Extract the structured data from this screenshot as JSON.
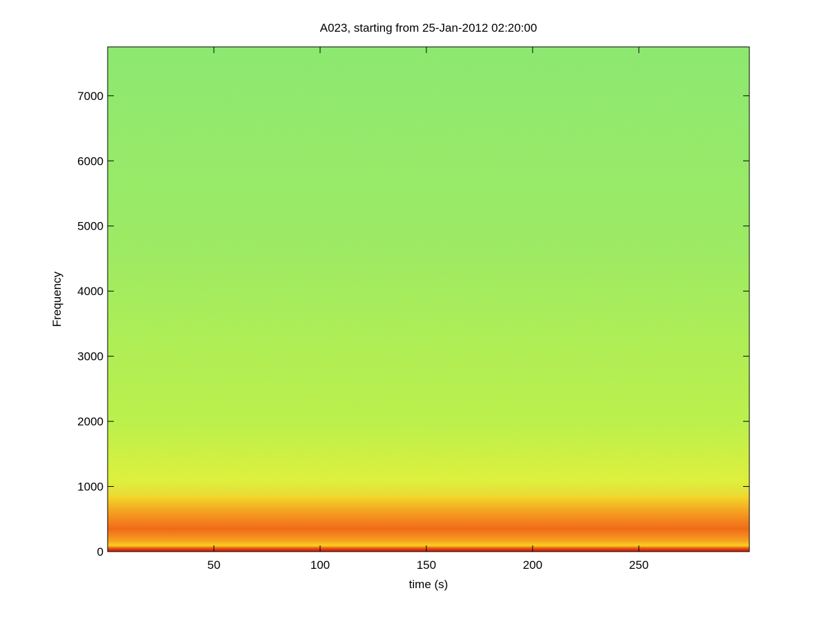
{
  "chart_data": {
    "type": "spectrogram",
    "title": "A023, starting from 25-Jan-2012 02:20:00",
    "xlabel": "time (s)",
    "ylabel": "Frequency",
    "xlim": [
      0,
      302
    ],
    "ylim": [
      0,
      7750
    ],
    "xticks": [
      50,
      100,
      150,
      200,
      250
    ],
    "yticks": [
      0,
      1000,
      2000,
      3000,
      4000,
      5000,
      6000,
      7000
    ]
  }
}
